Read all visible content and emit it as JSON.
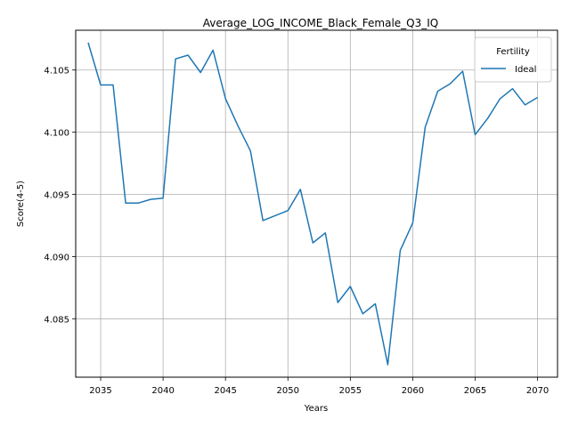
{
  "chart_data": {
    "type": "line",
    "title": "Average_LOG_INCOME_Black_Female_Q3_IQ",
    "xlabel": "Years",
    "ylabel": "Score(4-5)",
    "xlim": [
      2033,
      2071.6
    ],
    "ylim": [
      4.0803,
      4.1082
    ],
    "x_ticks": [
      2035,
      2040,
      2045,
      2050,
      2055,
      2060,
      2065,
      2070
    ],
    "y_ticks": [
      4.085,
      4.09,
      4.095,
      4.1,
      4.105
    ],
    "y_tick_labels": [
      "4.085",
      "4.090",
      "4.095",
      "4.100",
      "4.105"
    ],
    "grid": true,
    "legend": {
      "title": "Fertility",
      "placement": "top-right"
    },
    "series": [
      {
        "name": "Ideal",
        "color": "#1f77b4",
        "x": [
          2034,
          2035,
          2036,
          2037,
          2038,
          2039,
          2040,
          2041,
          2042,
          2043,
          2044,
          2045,
          2046,
          2047,
          2048,
          2049,
          2050,
          2051,
          2052,
          2053,
          2054,
          2055,
          2056,
          2057,
          2058,
          2059,
          2060,
          2061,
          2062,
          2063,
          2064,
          2065,
          2066,
          2067,
          2068,
          2069,
          2070
        ],
        "y": [
          4.1072,
          4.1038,
          4.1038,
          4.0943,
          4.0943,
          4.0946,
          4.0947,
          4.1059,
          4.1062,
          4.1048,
          4.1066,
          4.1027,
          4.1005,
          4.0985,
          4.0929,
          4.0933,
          4.0937,
          4.0954,
          4.0911,
          4.0919,
          4.0863,
          4.0876,
          4.0854,
          4.0862,
          4.0813,
          4.0905,
          4.0927,
          4.1004,
          4.1033,
          4.1039,
          4.1049,
          4.0998,
          4.1011,
          4.1027,
          4.1035,
          4.1022,
          4.1028
        ]
      }
    ]
  }
}
